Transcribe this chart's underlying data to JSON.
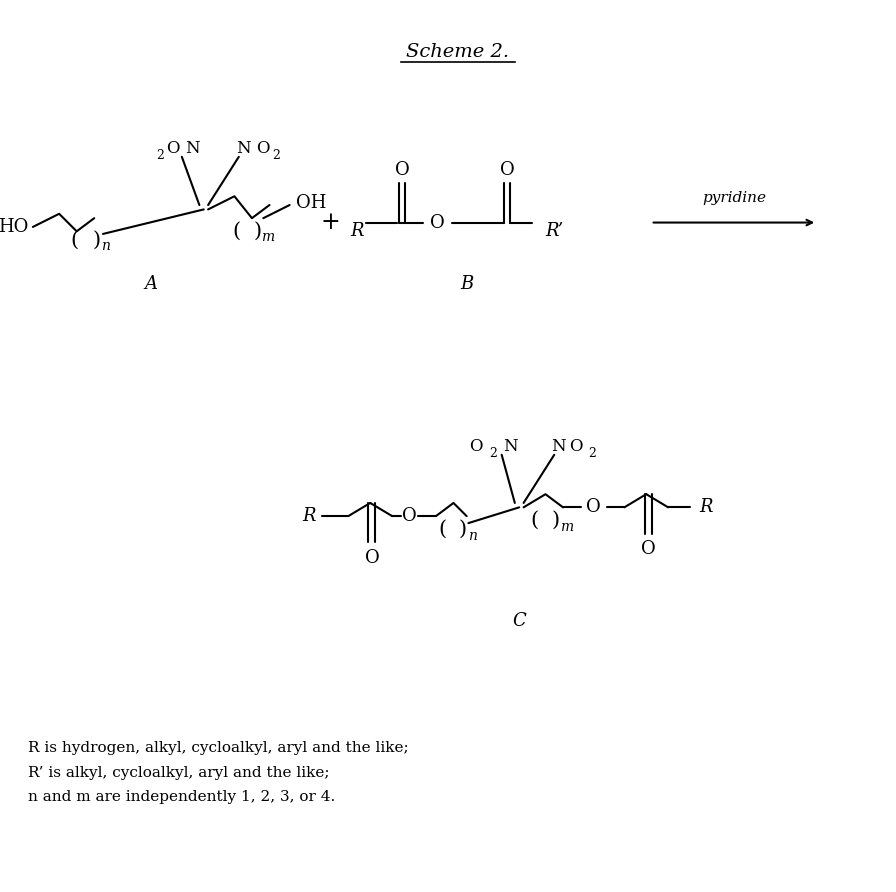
{
  "title": "Scheme 2.",
  "background_color": "#ffffff",
  "text_color": "#000000",
  "figsize": [
    8.96,
    8.92
  ],
  "dpi": 100,
  "footnote_lines": [
    "R is hydrogen, alkyl, cycloalkyl, aryl and the like;",
    "R’ is alkyl, cycloalkyl, aryl and the like;",
    "n and m are independently 1, 2, 3, or 4."
  ]
}
